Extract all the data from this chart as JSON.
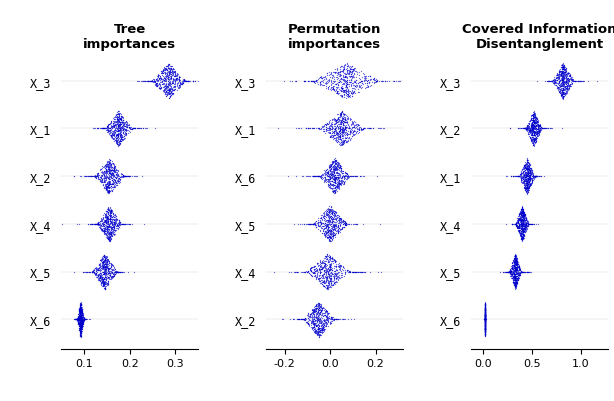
{
  "title1": "Tree\nimportances",
  "title2": "Permutation\nimportances",
  "title3": "Covered Information\nDisentanglement",
  "dot_color": "#0000CC",
  "dot_size": 0.8,
  "alpha": 0.6,
  "panel1": {
    "features": [
      "X_3",
      "X_1",
      "X_2",
      "X_4",
      "X_5",
      "X_6"
    ],
    "means": [
      0.285,
      0.175,
      0.155,
      0.155,
      0.145,
      0.092
    ],
    "x_spreads": [
      0.025,
      0.02,
      0.022,
      0.018,
      0.018,
      0.005
    ],
    "y_scales": [
      0.38,
      0.38,
      0.38,
      0.38,
      0.38,
      0.38
    ],
    "xlim": [
      0.05,
      0.35
    ],
    "xticks": [
      0.1,
      0.2,
      0.3
    ]
  },
  "panel2": {
    "features": [
      "X_3",
      "X_1",
      "X_6",
      "X_5",
      "X_4",
      "X_2"
    ],
    "means": [
      0.07,
      0.05,
      0.02,
      0.0,
      -0.01,
      -0.05
    ],
    "x_spreads": [
      0.1,
      0.065,
      0.045,
      0.05,
      0.065,
      0.045
    ],
    "y_scales": [
      0.38,
      0.38,
      0.38,
      0.38,
      0.38,
      0.38
    ],
    "xlim": [
      -0.28,
      0.32
    ],
    "xticks": [
      -0.2,
      0.0,
      0.2
    ]
  },
  "panel3": {
    "features": [
      "X_3",
      "X_2",
      "X_1",
      "X_4",
      "X_5",
      "X_6"
    ],
    "means": [
      0.82,
      0.52,
      0.45,
      0.4,
      0.33,
      0.02
    ],
    "x_spreads": [
      0.075,
      0.055,
      0.055,
      0.045,
      0.042,
      0.002
    ],
    "y_scales": [
      0.38,
      0.38,
      0.38,
      0.38,
      0.38,
      0.38
    ],
    "xlim": [
      -0.12,
      1.28
    ],
    "xticks": [
      0.0,
      0.5,
      1.0
    ]
  },
  "n_points": 600,
  "seed": 42
}
